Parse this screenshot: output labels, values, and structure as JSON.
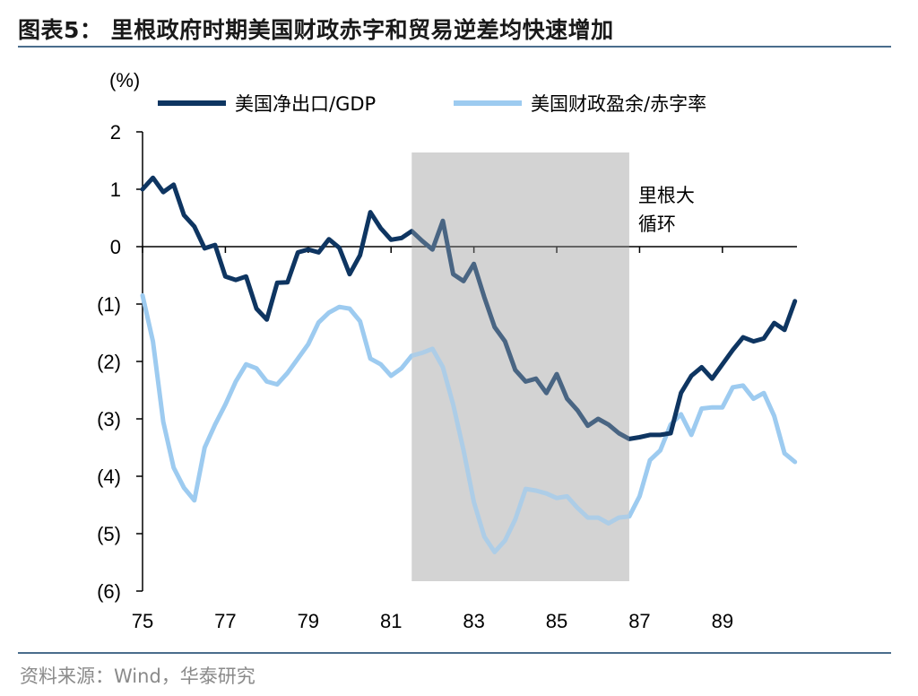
{
  "header": {
    "title": "图表5：  里根政府时期美国财政赤字和贸易逆差均快速增加"
  },
  "footer": {
    "source": "资料来源：Wind，华泰研究"
  },
  "chart_data": {
    "type": "line",
    "unit_label": "(%)",
    "xlabel": "",
    "ylabel": "",
    "ylim": [
      -6,
      2
    ],
    "xlim": [
      75,
      90.8
    ],
    "y_ticks": [
      2,
      1,
      0,
      -1,
      -2,
      -3,
      -4,
      -5,
      -6
    ],
    "y_tick_labels": [
      "2",
      "1",
      "0",
      "(1)",
      "(2)",
      "(3)",
      "(4)",
      "(5)",
      "(6)"
    ],
    "x_ticks": [
      75,
      77,
      79,
      81,
      83,
      85,
      87,
      89
    ],
    "x_tick_labels": [
      "75",
      "77",
      "79",
      "81",
      "83",
      "85",
      "87",
      "89"
    ],
    "legend_position": "top",
    "shaded_period": {
      "start": 81.5,
      "end": 86.75,
      "color": "#d3d3d3",
      "label_line1": "里根大",
      "label_line2": "循环"
    },
    "series": [
      {
        "name": "美国净出口/GDP",
        "color": "#0e3561",
        "points": [
          [
            75.0,
            1.0
          ],
          [
            75.25,
            1.2
          ],
          [
            75.5,
            0.95
          ],
          [
            75.75,
            1.08
          ],
          [
            76.0,
            0.55
          ],
          [
            76.25,
            0.35
          ],
          [
            76.5,
            -0.03
          ],
          [
            76.75,
            0.03
          ],
          [
            77.0,
            -0.52
          ],
          [
            77.25,
            -0.58
          ],
          [
            77.5,
            -0.52
          ],
          [
            77.75,
            -1.08
          ],
          [
            78.0,
            -1.27
          ],
          [
            78.25,
            -0.63
          ],
          [
            78.5,
            -0.62
          ],
          [
            78.75,
            -0.1
          ],
          [
            79.0,
            -0.05
          ],
          [
            79.25,
            -0.1
          ],
          [
            79.5,
            0.13
          ],
          [
            79.75,
            -0.02
          ],
          [
            80.0,
            -0.48
          ],
          [
            80.25,
            -0.15
          ],
          [
            80.5,
            0.6
          ],
          [
            80.75,
            0.32
          ],
          [
            81.0,
            0.12
          ],
          [
            81.25,
            0.15
          ],
          [
            81.5,
            0.27
          ],
          [
            81.75,
            0.1
          ],
          [
            82.0,
            -0.05
          ],
          [
            82.25,
            0.45
          ],
          [
            82.5,
            -0.48
          ],
          [
            82.75,
            -0.6
          ],
          [
            83.0,
            -0.3
          ],
          [
            83.25,
            -0.88
          ],
          [
            83.5,
            -1.4
          ],
          [
            83.75,
            -1.65
          ],
          [
            84.0,
            -2.15
          ],
          [
            84.25,
            -2.35
          ],
          [
            84.5,
            -2.3
          ],
          [
            84.75,
            -2.55
          ],
          [
            85.0,
            -2.22
          ],
          [
            85.25,
            -2.65
          ],
          [
            85.5,
            -2.85
          ],
          [
            85.75,
            -3.12
          ],
          [
            86.0,
            -3.0
          ],
          [
            86.25,
            -3.1
          ],
          [
            86.5,
            -3.25
          ],
          [
            86.75,
            -3.35
          ],
          [
            87.0,
            -3.32
          ],
          [
            87.25,
            -3.28
          ],
          [
            87.5,
            -3.28
          ],
          [
            87.75,
            -3.25
          ],
          [
            88.0,
            -2.55
          ],
          [
            88.25,
            -2.25
          ],
          [
            88.5,
            -2.1
          ],
          [
            88.75,
            -2.3
          ],
          [
            89.0,
            -2.05
          ],
          [
            89.25,
            -1.8
          ],
          [
            89.5,
            -1.58
          ],
          [
            89.75,
            -1.65
          ],
          [
            90.0,
            -1.6
          ],
          [
            90.25,
            -1.33
          ],
          [
            90.5,
            -1.45
          ],
          [
            90.75,
            -0.95
          ]
        ]
      },
      {
        "name": "美国财政盈余/赤字率",
        "color": "#9dcbf0",
        "points": [
          [
            75.0,
            -0.85
          ],
          [
            75.25,
            -1.65
          ],
          [
            75.5,
            -3.05
          ],
          [
            75.75,
            -3.85
          ],
          [
            76.0,
            -4.2
          ],
          [
            76.25,
            -4.42
          ],
          [
            76.5,
            -3.5
          ],
          [
            76.75,
            -3.1
          ],
          [
            77.0,
            -2.75
          ],
          [
            77.25,
            -2.35
          ],
          [
            77.5,
            -2.05
          ],
          [
            77.75,
            -2.12
          ],
          [
            78.0,
            -2.35
          ],
          [
            78.25,
            -2.4
          ],
          [
            78.5,
            -2.2
          ],
          [
            78.75,
            -1.95
          ],
          [
            79.0,
            -1.7
          ],
          [
            79.25,
            -1.32
          ],
          [
            79.5,
            -1.15
          ],
          [
            79.75,
            -1.05
          ],
          [
            80.0,
            -1.08
          ],
          [
            80.25,
            -1.3
          ],
          [
            80.5,
            -1.95
          ],
          [
            80.75,
            -2.05
          ],
          [
            81.0,
            -2.25
          ],
          [
            81.25,
            -2.12
          ],
          [
            81.5,
            -1.9
          ],
          [
            81.75,
            -1.85
          ],
          [
            82.0,
            -1.78
          ],
          [
            82.25,
            -2.1
          ],
          [
            82.5,
            -2.75
          ],
          [
            82.75,
            -3.55
          ],
          [
            83.0,
            -4.45
          ],
          [
            83.25,
            -5.05
          ],
          [
            83.5,
            -5.32
          ],
          [
            83.75,
            -5.12
          ],
          [
            84.0,
            -4.75
          ],
          [
            84.25,
            -4.22
          ],
          [
            84.5,
            -4.25
          ],
          [
            84.75,
            -4.3
          ],
          [
            85.0,
            -4.38
          ],
          [
            85.25,
            -4.35
          ],
          [
            85.5,
            -4.55
          ],
          [
            85.75,
            -4.72
          ],
          [
            86.0,
            -4.72
          ],
          [
            86.25,
            -4.82
          ],
          [
            86.5,
            -4.72
          ],
          [
            86.75,
            -4.7
          ],
          [
            87.0,
            -4.35
          ],
          [
            87.25,
            -3.72
          ],
          [
            87.5,
            -3.55
          ],
          [
            87.75,
            -3.1
          ],
          [
            88.0,
            -2.92
          ],
          [
            88.25,
            -3.28
          ],
          [
            88.5,
            -2.82
          ],
          [
            88.75,
            -2.8
          ],
          [
            89.0,
            -2.8
          ],
          [
            89.25,
            -2.45
          ],
          [
            89.5,
            -2.42
          ],
          [
            89.75,
            -2.65
          ],
          [
            90.0,
            -2.55
          ],
          [
            90.25,
            -2.95
          ],
          [
            90.5,
            -3.6
          ],
          [
            90.75,
            -3.75
          ]
        ]
      }
    ]
  }
}
